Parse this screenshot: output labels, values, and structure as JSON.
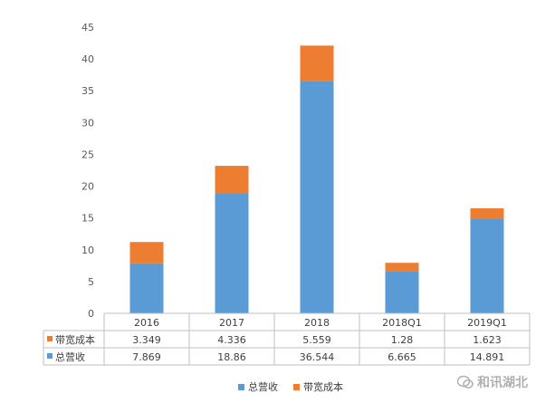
{
  "chart_data": {
    "type": "bar",
    "stacked": true,
    "categories": [
      "2016",
      "2017",
      "2018",
      "2018Q1",
      "2019Q1"
    ],
    "series": [
      {
        "name": "总营收",
        "values": [
          7.869,
          18.86,
          36.544,
          6.665,
          14.891
        ],
        "color": "#5b9bd5"
      },
      {
        "name": "带宽成本",
        "values": [
          3.349,
          4.336,
          5.559,
          1.28,
          1.623
        ],
        "color": "#ed7d31"
      }
    ],
    "ylim": [
      0,
      45
    ],
    "yticks": [
      0,
      5,
      10,
      15,
      20,
      25,
      30,
      35,
      40,
      45
    ],
    "grid": false,
    "legend_position": "bottom",
    "data_table": {
      "rows": [
        {
          "label": "带宽成本",
          "values": [
            "3.349",
            "4.336",
            "5.559",
            "1.28",
            "1.623"
          ]
        },
        {
          "label": "总营收",
          "values": [
            "7.869",
            "18.86",
            "36.544",
            "6.665",
            "14.891"
          ]
        }
      ]
    }
  },
  "legend": {
    "items": [
      {
        "label": "总营收",
        "color": "#5b9bd5"
      },
      {
        "label": "带宽成本",
        "color": "#ed7d31"
      }
    ]
  },
  "watermark": {
    "text": "和讯湖北"
  }
}
